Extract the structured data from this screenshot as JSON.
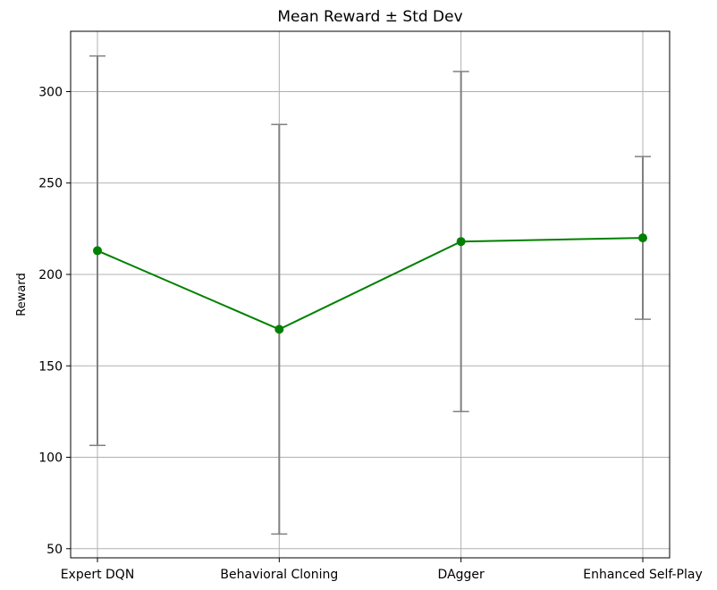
{
  "chart_data": {
    "type": "line",
    "title": "Mean Reward ± Std Dev",
    "xlabel": "",
    "ylabel": "Reward",
    "categories": [
      "Expert DQN",
      "Behavioral Cloning",
      "DAgger",
      "Enhanced Self-Play"
    ],
    "series": [
      {
        "values": [
          213,
          170,
          218,
          220
        ],
        "std": [
          106.5,
          112,
          93,
          44.5
        ]
      }
    ],
    "yticks": [
      50,
      100,
      150,
      200,
      250,
      300
    ],
    "ylim": [
      45,
      333
    ],
    "grid": true,
    "colors": {
      "line": "#008000",
      "errorbar": "#808080",
      "grid": "#b0b0b0",
      "axis": "#000000"
    }
  }
}
